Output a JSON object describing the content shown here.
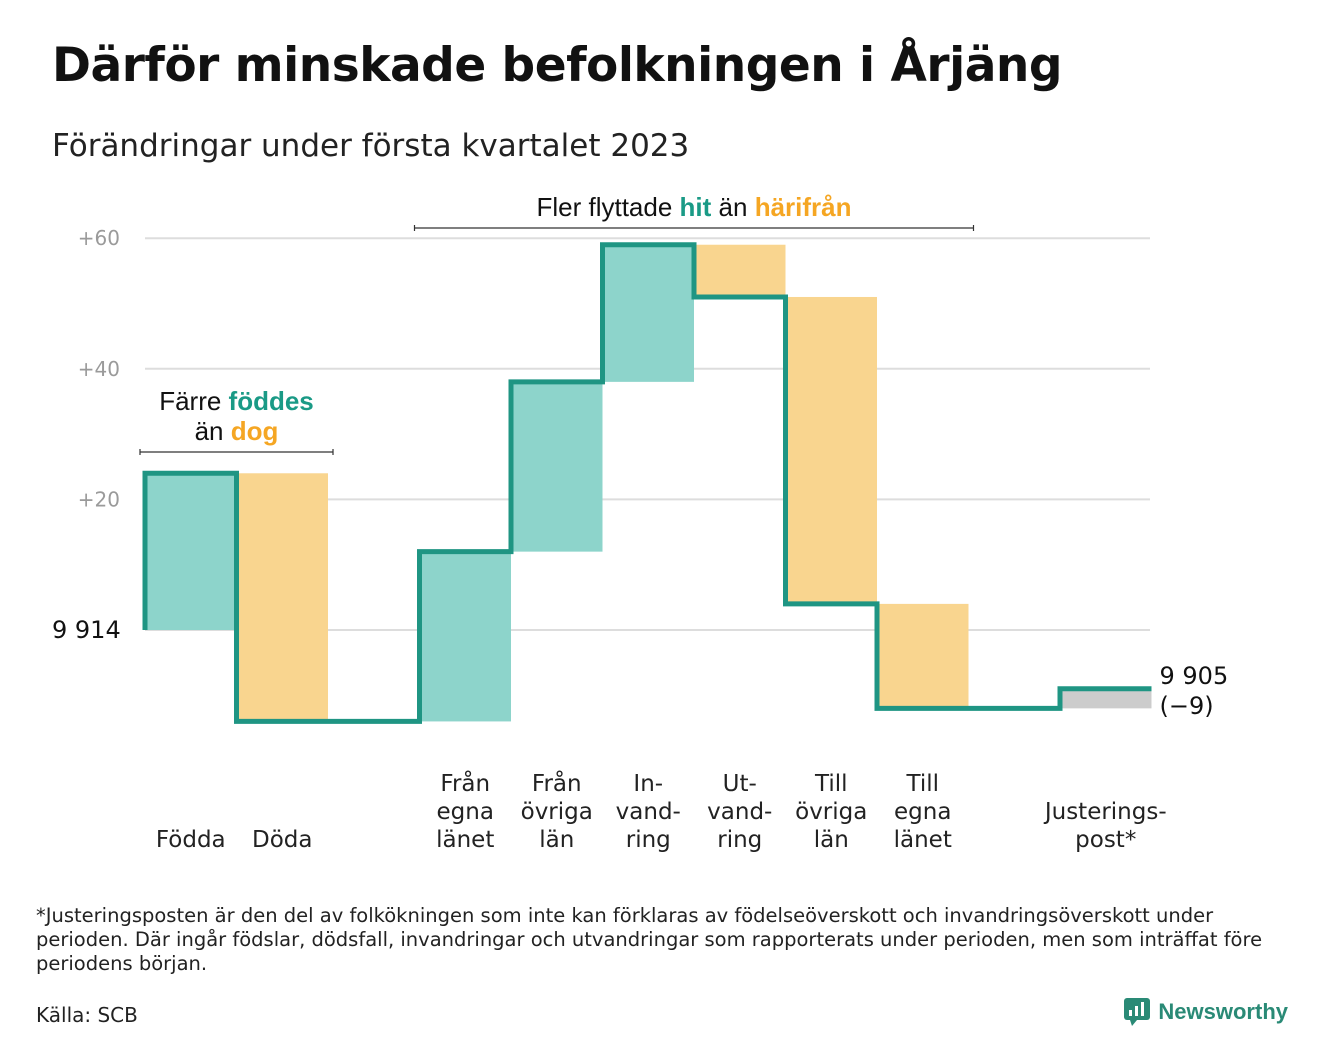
{
  "title": "Därför minskade befolkningen i Årjäng",
  "subtitle": "Förändringar under första kvartalet 2023",
  "colors": {
    "positive_fill": "#8dd4cb",
    "negative_fill": "#f9d58f",
    "adjustment_fill": "#cccccc",
    "line": "#1f9583",
    "positive_text": "#1a9a86",
    "negative_text": "#f5a623",
    "grid": "#dddddd"
  },
  "chart_data": {
    "type": "bar",
    "subtype": "waterfall",
    "title": "Därför minskade befolkningen i Årjäng",
    "subtitle": "Förändringar under första kvartalet 2023",
    "y_ticks": [
      {
        "value": 20,
        "label": "+20"
      },
      {
        "value": 40,
        "label": "+40"
      },
      {
        "value": 60,
        "label": "+60"
      }
    ],
    "start": {
      "value": 0,
      "label": "9 914"
    },
    "end": {
      "value": -9,
      "label_lines": [
        "9 905",
        "(−9)"
      ]
    },
    "ylim": [
      -15,
      63
    ],
    "grid": true,
    "steps": [
      {
        "label_lines": [
          "Födda"
        ],
        "from": 0,
        "to": 24,
        "kind": "positive"
      },
      {
        "label_lines": [
          "Döda"
        ],
        "from": 24,
        "to": -14,
        "kind": "negative"
      },
      {
        "label_lines": [
          ""
        ],
        "from": -14,
        "to": -14,
        "kind": "gap"
      },
      {
        "label_lines": [
          "Från",
          "egna",
          "länet"
        ],
        "from": -14,
        "to": 12,
        "kind": "positive"
      },
      {
        "label_lines": [
          "Från",
          "övriga",
          "län"
        ],
        "from": 12,
        "to": 38,
        "kind": "positive"
      },
      {
        "label_lines": [
          "In-",
          "vand-",
          "ring"
        ],
        "from": 38,
        "to": 59,
        "kind": "positive"
      },
      {
        "label_lines": [
          "Ut-",
          "vand-",
          "ring"
        ],
        "from": 59,
        "to": 51,
        "kind": "negative"
      },
      {
        "label_lines": [
          "Till",
          "övriga",
          "län"
        ],
        "from": 51,
        "to": 4,
        "kind": "negative"
      },
      {
        "label_lines": [
          "Till",
          "egna",
          "länet"
        ],
        "from": 4,
        "to": -12,
        "kind": "negative"
      },
      {
        "label_lines": [
          ""
        ],
        "from": -12,
        "to": -12,
        "kind": "gap"
      },
      {
        "label_lines": [
          "Justerings-",
          "post*"
        ],
        "from": -12,
        "to": -9,
        "kind": "adjustment"
      }
    ],
    "annotations": [
      {
        "id": "birth",
        "lines": [
          [
            {
              "text": "Färre ",
              "style": ""
            },
            {
              "text": "föddes",
              "style": "pos"
            }
          ],
          [
            {
              "text": "än ",
              "style": ""
            },
            {
              "text": "dog",
              "style": "neg"
            }
          ]
        ],
        "span": [
          0,
          1
        ]
      },
      {
        "id": "migration",
        "lines": [
          [
            {
              "text": "Fler flyttade ",
              "style": ""
            },
            {
              "text": "hit",
              "style": "pos"
            },
            {
              "text": " än ",
              "style": ""
            },
            {
              "text": "härifrån",
              "style": "neg"
            }
          ]
        ],
        "span": [
          3,
          8
        ]
      }
    ]
  },
  "footnote": "*Justeringsposten är den del av folkökningen som inte kan förklaras av födelseöverskott och invandringsöverskott under perioden. Där ingår födslar, dödsfall, invandringar och utvandringar som rapporterats under perioden, men som inträffat före periodens början.",
  "source": "Källa: SCB",
  "logo": {
    "text": "Newsworthy",
    "icon": "newsworthy-chart-icon"
  }
}
